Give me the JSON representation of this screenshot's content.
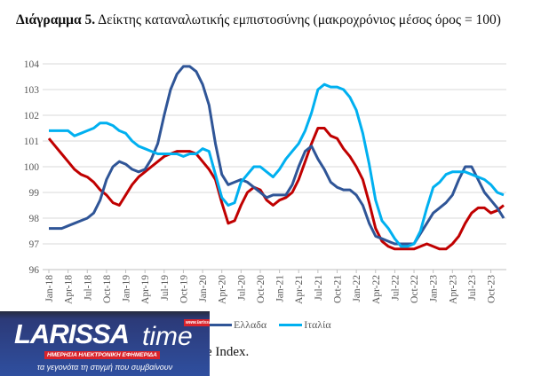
{
  "title": {
    "bold": "Διάγραμμα 5.",
    "text": " Δείκτης καταναλωτικής εμπιστοσύνης (μακροχρόνιος μέσος όρος = 100)"
  },
  "caption_fragment": "e Index.",
  "logo": {
    "name": "LARISSA",
    "name2": "time",
    "url": "www.larissatime.gr",
    "subtitle": "ΗΜΕΡΗΣΙΑ ΗΛΕΚΤΡΟΝΙΚΗ ΕΦΗΜΕΡΙΔΑ",
    "slogan": "τα γεγονότα τη στιγμή που συμβαίνουν"
  },
  "chart_data": {
    "type": "line",
    "title": "",
    "xlabel": "",
    "ylabel": "",
    "ylim": [
      96,
      104
    ],
    "yticks": [
      96,
      97,
      98,
      99,
      100,
      101,
      102,
      103,
      104
    ],
    "x_start": "Jan-18",
    "x_end": "Dec-23",
    "frequency": "monthly",
    "xticks": [
      "Jan-18",
      "Apr-18",
      "Jul-18",
      "Oct-18",
      "Jan-19",
      "Apr-19",
      "Jul-19",
      "Oct-19",
      "Jan-20",
      "Apr-20",
      "Jul-20",
      "Oct-20",
      "Jan-21",
      "Apr-21",
      "Jul-21",
      "Oct-21",
      "Jan-22",
      "Apr-22",
      "Jul-22",
      "Oct-22",
      "Jan-23",
      "Apr-23",
      "Jul-23",
      "Oct-23"
    ],
    "grid": true,
    "legend": "bottom",
    "series": [
      {
        "name": "",
        "color": "#c00000",
        "values": [
          101.1,
          100.8,
          100.5,
          100.2,
          99.9,
          99.7,
          99.6,
          99.4,
          99.1,
          98.9,
          98.6,
          98.5,
          98.9,
          99.3,
          99.6,
          99.8,
          100.0,
          100.2,
          100.4,
          100.5,
          100.6,
          100.6,
          100.6,
          100.5,
          100.2,
          99.9,
          99.5,
          98.6,
          97.8,
          97.9,
          98.5,
          99.0,
          99.2,
          99.1,
          98.7,
          98.5,
          98.7,
          98.8,
          99.0,
          99.5,
          100.2,
          100.9,
          101.5,
          101.5,
          101.2,
          101.1,
          100.7,
          100.4,
          100.0,
          99.5,
          98.6,
          97.6,
          97.1,
          96.9,
          96.8,
          96.8,
          96.8,
          96.8,
          96.9,
          97.0,
          96.9,
          96.8,
          96.8,
          97.0,
          97.3,
          97.8,
          98.2,
          98.4,
          98.4,
          98.2,
          98.3,
          98.5
        ]
      },
      {
        "name": "Ελλαδα",
        "color": "#2f5597",
        "values": [
          97.6,
          97.6,
          97.6,
          97.7,
          97.8,
          97.9,
          98.0,
          98.2,
          98.7,
          99.5,
          100.0,
          100.2,
          100.1,
          99.9,
          99.8,
          99.9,
          100.3,
          100.9,
          102.0,
          103.0,
          103.6,
          103.9,
          103.9,
          103.7,
          103.2,
          102.4,
          100.9,
          99.7,
          99.3,
          99.4,
          99.5,
          99.4,
          99.2,
          99.0,
          98.8,
          98.9,
          98.9,
          98.9,
          99.3,
          100.0,
          100.6,
          100.8,
          100.3,
          99.9,
          99.4,
          99.2,
          99.1,
          99.1,
          98.9,
          98.5,
          97.8,
          97.3,
          97.2,
          97.1,
          97.0,
          97.0,
          97.0,
          97.0,
          97.4,
          97.8,
          98.2,
          98.4,
          98.6,
          98.9,
          99.5,
          100.0,
          100.0,
          99.5,
          99.0,
          98.7,
          98.4,
          98.0
        ]
      },
      {
        "name": "Ιταλία",
        "color": "#00b0f0",
        "values": [
          101.4,
          101.4,
          101.4,
          101.4,
          101.2,
          101.3,
          101.4,
          101.5,
          101.7,
          101.7,
          101.6,
          101.4,
          101.3,
          101.0,
          100.8,
          100.7,
          100.6,
          100.5,
          100.5,
          100.5,
          100.5,
          100.4,
          100.5,
          100.5,
          100.7,
          100.6,
          99.7,
          98.8,
          98.5,
          98.6,
          99.4,
          99.7,
          100.0,
          100.0,
          99.8,
          99.6,
          99.9,
          100.3,
          100.6,
          100.9,
          101.4,
          102.1,
          103.0,
          103.2,
          103.1,
          103.1,
          103.0,
          102.7,
          102.2,
          101.3,
          100.1,
          98.7,
          97.9,
          97.6,
          97.2,
          96.9,
          96.9,
          97.0,
          97.5,
          98.4,
          99.2,
          99.4,
          99.7,
          99.8,
          99.8,
          99.8,
          99.7,
          99.6,
          99.5,
          99.3,
          99.0,
          98.9
        ]
      }
    ]
  }
}
